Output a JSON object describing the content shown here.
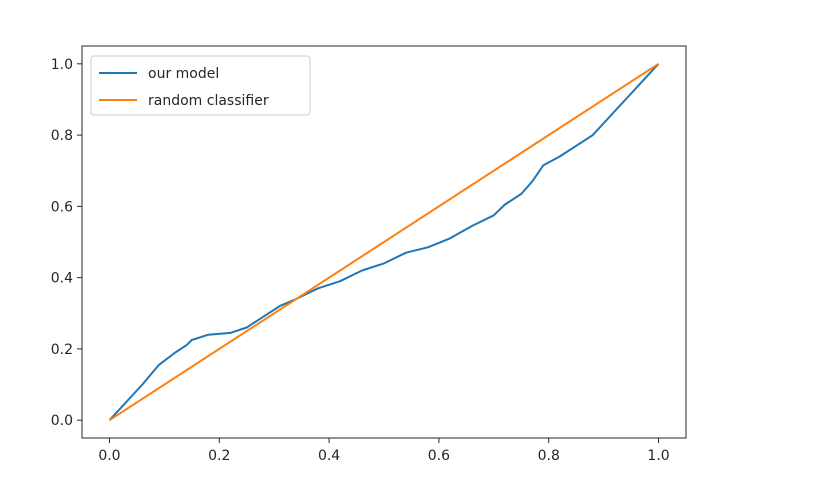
{
  "chart_data": {
    "type": "line",
    "title": "",
    "xlabel": "",
    "ylabel": "",
    "xlim": [
      -0.05,
      1.05
    ],
    "ylim": [
      -0.05,
      1.05
    ],
    "grid": false,
    "legend_position": "top-left",
    "x_ticks": [
      {
        "value": 0.0,
        "label": "0.0"
      },
      {
        "value": 0.2,
        "label": "0.2"
      },
      {
        "value": 0.4,
        "label": "0.4"
      },
      {
        "value": 0.6,
        "label": "0.6"
      },
      {
        "value": 0.8,
        "label": "0.8"
      },
      {
        "value": 1.0,
        "label": "1.0"
      }
    ],
    "y_ticks": [
      {
        "value": 0.0,
        "label": "0.0"
      },
      {
        "value": 0.2,
        "label": "0.2"
      },
      {
        "value": 0.4,
        "label": "0.4"
      },
      {
        "value": 0.6,
        "label": "0.6"
      },
      {
        "value": 0.8,
        "label": "0.8"
      },
      {
        "value": 1.0,
        "label": "1.0"
      }
    ],
    "series": [
      {
        "name": "our model",
        "color": "#1f77b4",
        "x": [
          0.0,
          0.03,
          0.06,
          0.09,
          0.12,
          0.14,
          0.15,
          0.18,
          0.22,
          0.25,
          0.28,
          0.31,
          0.34,
          0.38,
          0.42,
          0.46,
          0.5,
          0.54,
          0.58,
          0.62,
          0.66,
          0.7,
          0.72,
          0.75,
          0.77,
          0.79,
          0.82,
          0.85,
          0.88,
          1.0
        ],
        "y": [
          0.0,
          0.05,
          0.1,
          0.155,
          0.19,
          0.21,
          0.225,
          0.24,
          0.245,
          0.26,
          0.29,
          0.32,
          0.34,
          0.37,
          0.39,
          0.42,
          0.44,
          0.47,
          0.485,
          0.51,
          0.545,
          0.575,
          0.605,
          0.635,
          0.67,
          0.715,
          0.74,
          0.77,
          0.8,
          1.0
        ]
      },
      {
        "name": "random classifier",
        "color": "#ff7f0e",
        "x": [
          0.0,
          1.0
        ],
        "y": [
          0.0,
          1.0
        ]
      }
    ]
  }
}
